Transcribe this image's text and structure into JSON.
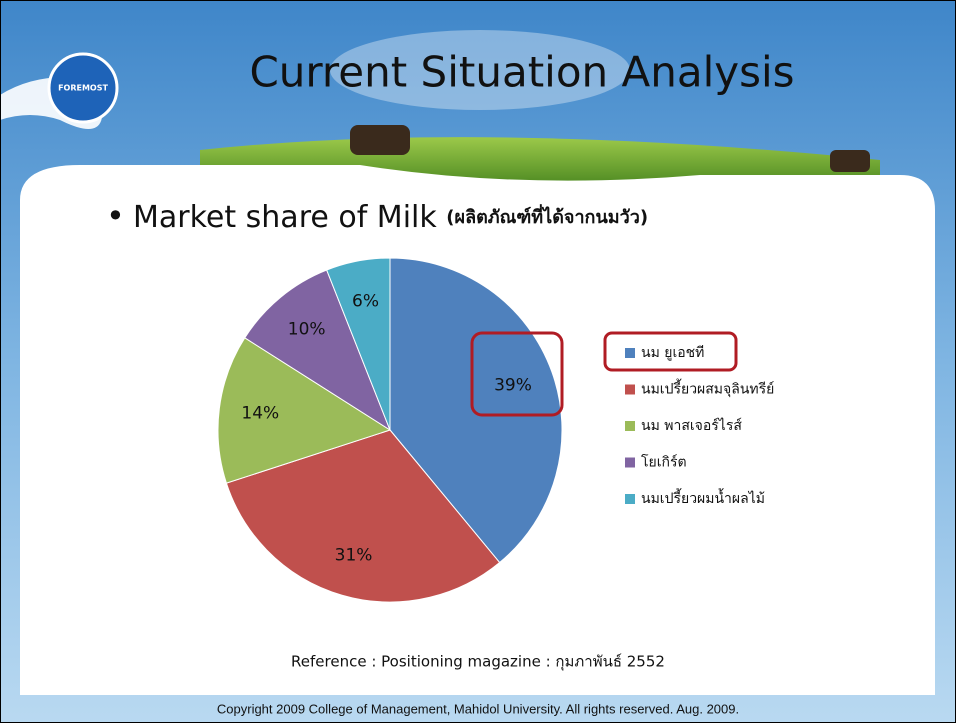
{
  "logo_text": "FOREMOST",
  "title": "Current Situation Analysis",
  "bullet": "Market share of Milk",
  "bullet_note": "(ผลิตภัณฑ์ที่ได้จากนมวัว)",
  "chart_data": {
    "type": "pie",
    "categories": [
      "นม ยูเอชที",
      "นมเปรี้ยวผสมจุลินทรีย์",
      "นม พาสเจอร์ไรส์",
      "โยเกิร์ต",
      "นมเปรี้ยวผมน้ำผลไม้"
    ],
    "values": [
      39,
      31,
      14,
      10,
      6
    ],
    "value_labels": [
      "39%",
      "31%",
      "14%",
      "10%",
      "6%"
    ],
    "colors": [
      "#4f81bd",
      "#c0504d",
      "#9bbb59",
      "#8064a2",
      "#4bacc6"
    ],
    "legend": "right"
  },
  "reference": "Reference : Positioning magazine : กุมภาพันธ์ 2552",
  "copyright": "Copyright 2009 College of Management, Mahidol University. All rights reserved. Aug. 2009."
}
